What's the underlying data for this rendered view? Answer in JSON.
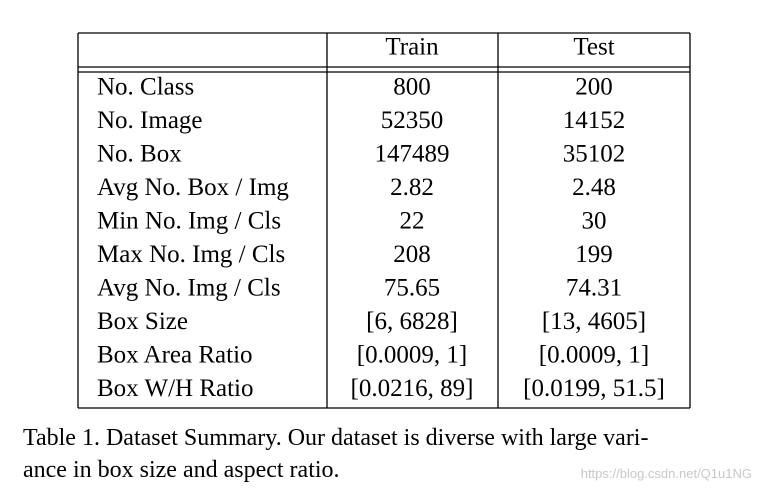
{
  "table": {
    "header": [
      "Train",
      "Test"
    ],
    "rows": [
      [
        "No. Class",
        "800",
        "200"
      ],
      [
        "No. Image",
        "52350",
        "14152"
      ],
      [
        "No. Box",
        "147489",
        "35102"
      ],
      [
        "Avg No. Box / Img",
        "2.82",
        "2.48"
      ],
      [
        "Min No. Img / Cls",
        "22",
        "30"
      ],
      [
        "Max No. Img / Cls",
        "208",
        "199"
      ],
      [
        "Avg No. Img / Cls",
        "75.65",
        "74.31"
      ],
      [
        "Box Size",
        "[6, 6828]",
        "[13, 4605]"
      ],
      [
        "Box Area Ratio",
        "[0.0009, 1]",
        "[0.0009, 1]"
      ],
      [
        "Box W/H Ratio",
        "[0.0216, 89]",
        "[0.0199, 51.5]"
      ]
    ]
  },
  "caption": [
    "Table 1. Dataset Summary. Our dataset is diverse with large vari-",
    "ance in box size and aspect ratio."
  ],
  "watermark": "https://blog.csdn.net/Q1u1NG"
}
